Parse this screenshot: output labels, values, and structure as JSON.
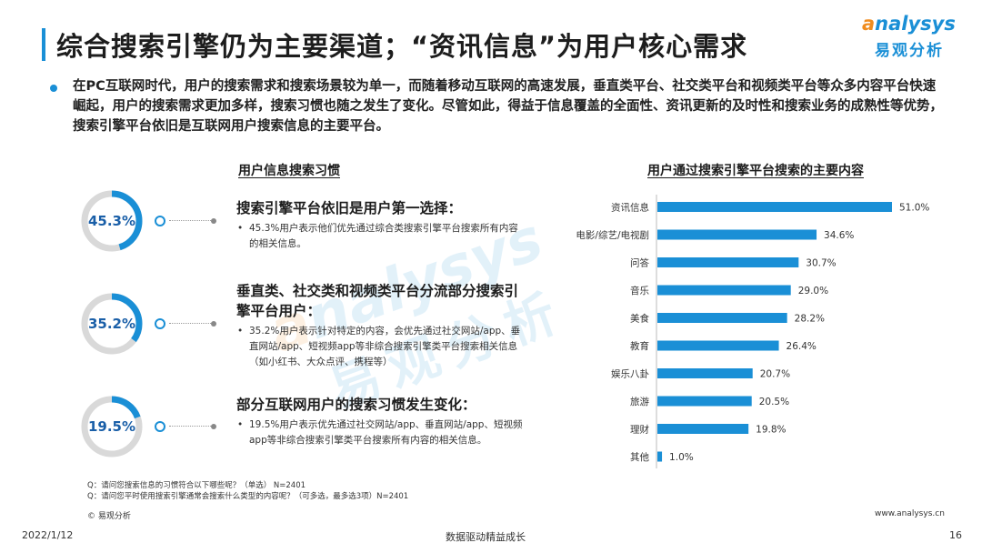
{
  "title": "综合搜索引擎仍为主要渠道；“资讯信息”为用户核心需求",
  "logo": {
    "en_first": "a",
    "en_rest": "nalysys",
    "cn": "易观分析"
  },
  "intro": "在PC互联网时代，用户的搜索需求和搜索场景较为单一，而随着移动互联网的高速发展，垂直类平台、社交类平台和视频类平台等众多内容平台快速崛起，用户的搜索需求更加多样，搜索习惯也随之发生了变化。尽管如此，得益于信息覆盖的全面性、资讯更新的及时性和搜索业务的成熟性等优势，搜索引擎平台依旧是互联网用户搜索信息的主要平台。",
  "left_section": {
    "title": "用户信息搜索习惯",
    "items": [
      {
        "percent_label": "45.3%",
        "percent": 45.3,
        "head": "搜索引擎平台依旧是用户第一选择：",
        "body": "45.3%用户表示他们优先通过综合类搜索引擎平台搜索所有内容的相关信息。"
      },
      {
        "percent_label": "35.2%",
        "percent": 35.2,
        "head": "垂直类、社交类和视频类平台分流部分搜索引擎平台用户：",
        "body": "35.2%用户表示针对特定的内容，会优先通过社交网站/app、垂直网站/app、短视频app等非综合搜索引擎类平台搜索相关信息（如小红书、大众点评、携程等）"
      },
      {
        "percent_label": "19.5%",
        "percent": 19.5,
        "head": "部分互联网用户的搜索习惯发生变化：",
        "body": "19.5%用户表示优先通过社交网站/app、垂直网站/app、短视频app等非综合搜索引擎类平台搜索所有内容的相关信息。"
      }
    ]
  },
  "chart_data": {
    "type": "bar",
    "orientation": "horizontal",
    "title": "用户通过搜索引擎平台搜索的主要内容",
    "categories": [
      "资讯信息",
      "电影/综艺/电视剧",
      "问答",
      "音乐",
      "美食",
      "教育",
      "娱乐八卦",
      "旅游",
      "理财",
      "其他"
    ],
    "values": [
      51.0,
      34.6,
      30.7,
      29.0,
      28.2,
      26.4,
      20.7,
      20.5,
      19.8,
      1.0
    ],
    "value_labels": [
      "51.0%",
      "34.6%",
      "30.7%",
      "29.0%",
      "28.2%",
      "26.4%",
      "20.7%",
      "20.5%",
      "19.8%",
      "1.0%"
    ],
    "xlim": [
      0,
      51.0
    ],
    "grid": false,
    "bar_color": "#1a8fd6"
  },
  "notes": [
    "Q：请问您搜索信息的习惯符合以下哪些呢？（单选） N=2401",
    "Q：请问您平时使用搜索引擎通常会搜索什么类型的内容呢？（可多选，最多选3项）N=2401"
  ],
  "copyright": "© 易观分析",
  "website": "www.analysys.cn",
  "footer": {
    "date": "2022/1/12",
    "slogan": "数据驱动精益成长",
    "page": "16"
  },
  "colors": {
    "accent": "#1a8fd6",
    "ring_track": "#d9d9d9",
    "logo_orange": "#f08c1e"
  }
}
